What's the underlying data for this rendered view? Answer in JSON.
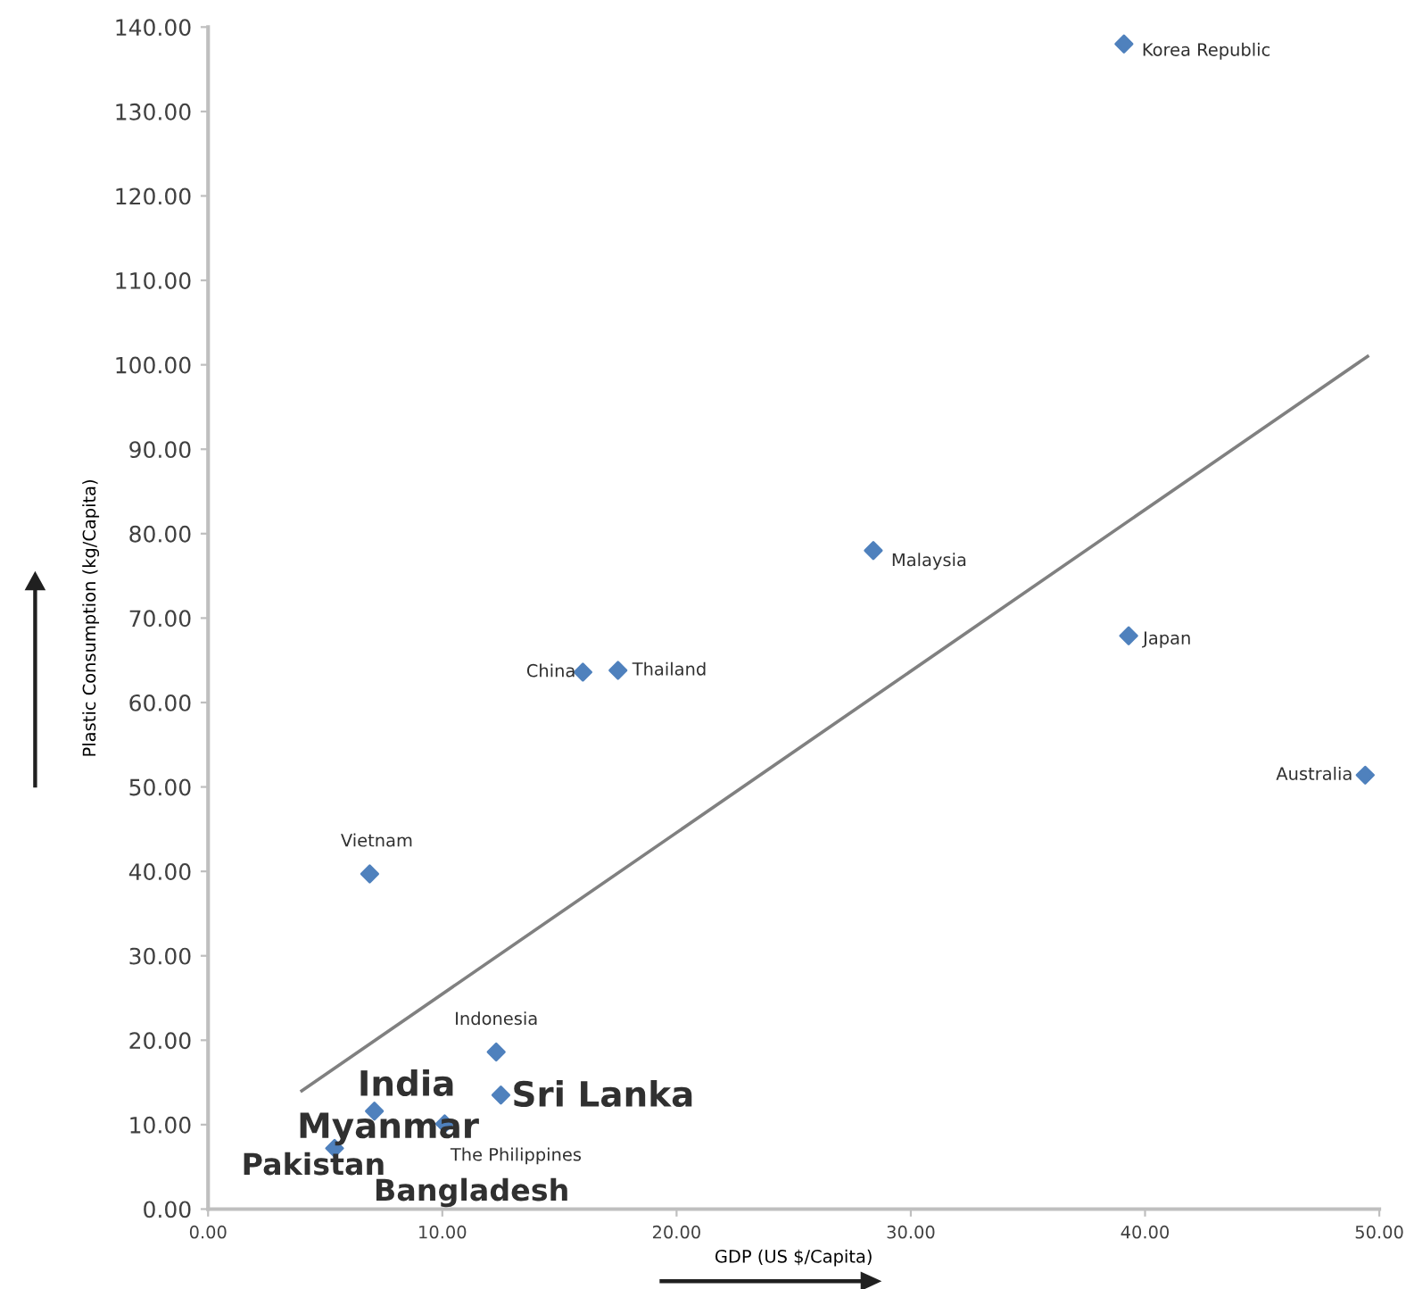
{
  "chart_data": {
    "type": "scatter",
    "xlabel": "GDP (US $/Capita)",
    "ylabel": "Plastic Consumption (kg/Capita)",
    "grid": false,
    "legend": false,
    "xlim": [
      0,
      50
    ],
    "xticks": [
      {
        "value": 0,
        "label": "0.00"
      },
      {
        "value": 10,
        "label": "10.00"
      },
      {
        "value": 20,
        "label": "20.00"
      },
      {
        "value": 30,
        "label": "30.00"
      },
      {
        "value": 40,
        "label": "40.00"
      },
      {
        "value": 50,
        "label": "50.00"
      }
    ],
    "ylim": [
      0,
      140
    ],
    "yticks": [
      {
        "value": 0,
        "label": "0.00"
      },
      {
        "value": 10,
        "label": "10.00"
      },
      {
        "value": 20,
        "label": "20.00"
      },
      {
        "value": 30,
        "label": "30.00"
      },
      {
        "value": 40,
        "label": "40.00"
      },
      {
        "value": 50,
        "label": "50.00"
      },
      {
        "value": 60,
        "label": "60.00"
      },
      {
        "value": 70,
        "label": "70.00"
      },
      {
        "value": 80,
        "label": "80.00"
      },
      {
        "value": 90,
        "label": "90.00"
      },
      {
        "value": 100,
        "label": "100.00"
      },
      {
        "value": 110,
        "label": "110.00"
      },
      {
        "value": 120,
        "label": "120.00"
      },
      {
        "value": 130,
        "label": "130.00"
      },
      {
        "value": 140,
        "label": "140.00"
      }
    ],
    "series": [
      {
        "marker": "diamond",
        "color": "#4f81bd",
        "x": [
          39.1,
          28.4,
          39.3,
          49.4,
          17.5,
          16.0,
          6.9,
          12.3,
          12.5,
          7.1,
          10.1,
          5.4
        ],
        "values": [
          138,
          78.0,
          67.9,
          51.4,
          63.8,
          63.6,
          39.7,
          18.6,
          13.5,
          11.6,
          10.1,
          7.2
        ]
      },
      {
        "type": "line",
        "color": "#808080",
        "x": [
          4.0,
          49.5
        ],
        "values": [
          14.0,
          101
        ]
      }
    ],
    "annotations": [
      {
        "text": "Korea Republic",
        "x": 39.1,
        "y": 138
      },
      {
        "text": "Malaysia",
        "x": 28.4,
        "y": 78.0
      },
      {
        "text": "Japan",
        "x": 39.3,
        "y": 67.9
      },
      {
        "text": "Australia",
        "x": 49.4,
        "y": 51.4
      },
      {
        "text": "Thailand",
        "x": 17.5,
        "y": 63.8
      },
      {
        "text": "China",
        "x": 16.0,
        "y": 63.6
      },
      {
        "text": "Vietnam",
        "x": 6.9,
        "y": 39.7
      },
      {
        "text": "Indonesia",
        "x": 12.3,
        "y": 18.6
      },
      {
        "text": "Sri Lanka",
        "x": 12.5,
        "y": 13.5
      },
      {
        "text": "India",
        "x": 7.1,
        "y": 11.6
      },
      {
        "text": "The Philippines",
        "x": 10.1,
        "y": 10.1
      },
      {
        "text": "Myanmar",
        "x": 5.4,
        "y": 7.2
      },
      "Pakistan",
      "Bangladesh"
    ]
  }
}
